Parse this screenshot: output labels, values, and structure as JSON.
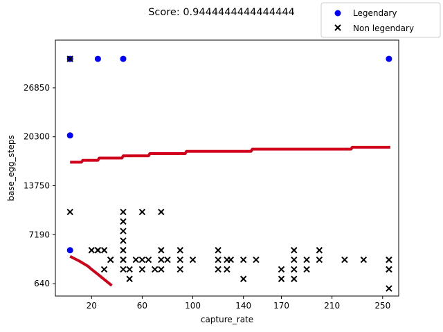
{
  "chart_data": {
    "type": "scatter",
    "title": "Score: 0.9444444444444444",
    "xlabel": "capture_rate",
    "ylabel": "base_egg_steps",
    "xlim": [
      -8.6,
      262.7
    ],
    "ylim": [
      -1010,
      33230
    ],
    "x_ticks": [
      20,
      60,
      100,
      140,
      170,
      210,
      250
    ],
    "x_tick_labels": [
      "20",
      "60",
      "100",
      "140",
      "170",
      "210",
      "250"
    ],
    "y_ticks": [
      640,
      7190,
      13750,
      20300,
      26850
    ],
    "y_tick_labels": [
      "640",
      "7190",
      "13750",
      "20300",
      "26850"
    ],
    "grid": false,
    "legend": {
      "placement": "top-right",
      "entries": [
        {
          "label": "Legendary",
          "marker": "circle",
          "color": "#0000ff"
        },
        {
          "label": "Non legendary",
          "marker": "x",
          "color": "#000000"
        }
      ]
    },
    "series": [
      {
        "name": "Legendary",
        "marker": "circle",
        "color": "#0000ff",
        "points": [
          [
            3,
            30720
          ],
          [
            3,
            20480
          ],
          [
            3,
            5120
          ],
          [
            25,
            30720
          ],
          [
            45,
            30720
          ],
          [
            255,
            30720
          ]
        ]
      },
      {
        "name": "Non legendary",
        "marker": "x",
        "color": "#000000",
        "points": [
          [
            3,
            30720
          ],
          [
            3,
            10240
          ],
          [
            25,
            5120
          ],
          [
            30,
            5120
          ],
          [
            35,
            3840
          ],
          [
            30,
            2560
          ],
          [
            45,
            10240
          ],
          [
            45,
            8960
          ],
          [
            45,
            7680
          ],
          [
            45,
            6400
          ],
          [
            45,
            5120
          ],
          [
            45,
            3840
          ],
          [
            45,
            3840
          ],
          [
            45,
            2560
          ],
          [
            50,
            2560
          ],
          [
            50,
            1280
          ],
          [
            55,
            3840
          ],
          [
            60,
            3840
          ],
          [
            60,
            10240
          ],
          [
            60,
            2560
          ],
          [
            65,
            3840
          ],
          [
            70,
            2560
          ],
          [
            75,
            10240
          ],
          [
            75,
            3840
          ],
          [
            75,
            2560
          ],
          [
            75,
            5120
          ],
          [
            80,
            3840
          ],
          [
            90,
            2560
          ],
          [
            90,
            5120
          ],
          [
            90,
            3840
          ],
          [
            100,
            3840
          ],
          [
            120,
            5120
          ],
          [
            120,
            3840
          ],
          [
            120,
            2560
          ],
          [
            127,
            3840
          ],
          [
            127,
            2560
          ],
          [
            130,
            3840
          ],
          [
            140,
            3840
          ],
          [
            140,
            1280
          ],
          [
            150,
            3840
          ],
          [
            170,
            2560
          ],
          [
            170,
            1280
          ],
          [
            180,
            5120
          ],
          [
            180,
            3840
          ],
          [
            180,
            2560
          ],
          [
            180,
            1280
          ],
          [
            190,
            3840
          ],
          [
            190,
            2560
          ],
          [
            200,
            5120
          ],
          [
            200,
            3840
          ],
          [
            220,
            3840
          ],
          [
            235,
            3840
          ],
          [
            255,
            3840
          ],
          [
            255,
            2560
          ],
          [
            255,
            3840
          ],
          [
            255,
            2560
          ],
          [
            255,
            0
          ],
          [
            25,
            5120
          ],
          [
            20,
            5120
          ],
          [
            35,
            3840
          ]
        ]
      }
    ],
    "decision_boundary": {
      "color": "#d0021b",
      "segments": [
        {
          "points": [
            [
              3,
              16900
            ],
            [
              12,
              16900
            ],
            [
              13,
              17150
            ],
            [
              25,
              17150
            ],
            [
              26,
              17450
            ],
            [
              44,
              17450
            ],
            [
              45,
              17750
            ],
            [
              65,
              17750
            ],
            [
              66,
              18050
            ],
            [
              94,
              18050
            ],
            [
              95,
              18350
            ],
            [
              146,
              18350
            ],
            [
              147,
              18650
            ],
            [
              225,
              18650
            ],
            [
              226,
              18900
            ],
            [
              256,
              18900
            ]
          ]
        },
        {
          "points": [
            [
              3,
              4300
            ],
            [
              10,
              3700
            ],
            [
              17,
              3000
            ],
            [
              19,
              2700
            ],
            [
              25,
              1900
            ],
            [
              30,
              1200
            ],
            [
              36,
              400
            ]
          ]
        }
      ]
    }
  }
}
